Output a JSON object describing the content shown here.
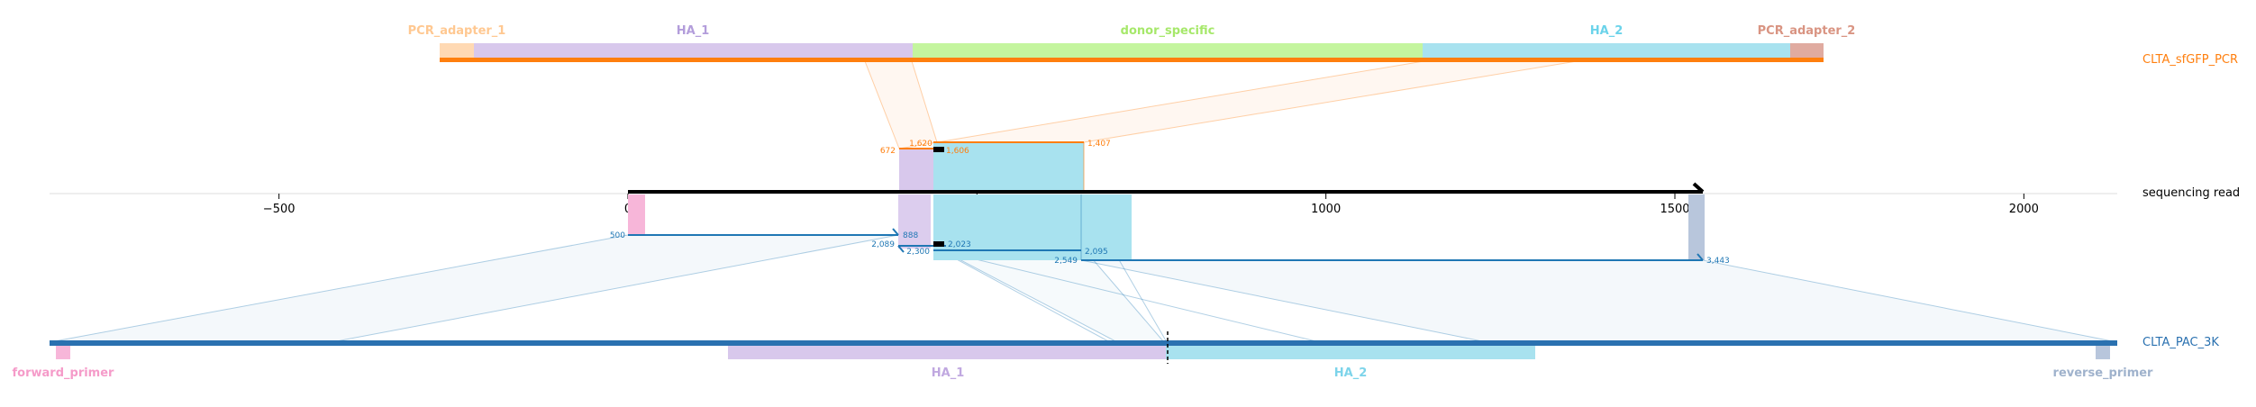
{
  "tracks": {
    "pcr": {
      "name": "CLTA_sfGFP_PCR",
      "color": "#ff7f0e",
      "features": [
        {
          "id": "pcr-adapter-1",
          "label": "PCR_adapter_1",
          "color": "#ffd9b3",
          "label_color": "#ffc891"
        },
        {
          "id": "ha-1",
          "label": "HA_1",
          "color": "#d8c8ec",
          "label_color": "#b39ddb"
        },
        {
          "id": "donor-specific",
          "label": "donor_specific",
          "color": "#c4f59e",
          "label_color": "#a6e86a"
        },
        {
          "id": "ha-2",
          "label": "HA_2",
          "color": "#a8e2ef",
          "label_color": "#6bd3ea"
        },
        {
          "id": "pcr-adapter-2",
          "label": "PCR_adapter_2",
          "color": "#e0aba0",
          "label_color": "#d99482"
        }
      ]
    },
    "read": {
      "name": "sequencing read",
      "color": "#000000"
    },
    "pac": {
      "name": "CLTA_PAC_3K",
      "color": "#2a71b0",
      "features": [
        {
          "id": "forward-primer",
          "label": "forward_primer",
          "color": "#f7b6d9",
          "label_color": "#f59bc9"
        },
        {
          "id": "pac-ha-1",
          "label": "HA_1",
          "color": "#d8c8ec",
          "label_color": "#c0a8e0"
        },
        {
          "id": "pac-ha-2",
          "label": "HA_2",
          "color": "#a8e2ef",
          "label_color": "#7dd4ea"
        },
        {
          "id": "reverse-primer",
          "label": "reverse_primer",
          "color": "#b8c6dc",
          "label_color": "#9fb2cc"
        }
      ]
    }
  },
  "axis": {
    "ticks": [
      -500,
      0,
      500,
      1000,
      1500,
      2000
    ],
    "tick_labels": [
      "−500",
      "0",
      "500",
      "1000",
      "1500",
      "2000"
    ],
    "xlim": [
      -830,
      2130
    ]
  },
  "pcr_alignments": [
    {
      "read_start": 387,
      "read_end": 437,
      "ref_start_label": "672",
      "ref_end_label": "1,620",
      "ref_end2_label": "1,606"
    },
    {
      "read_start": 437,
      "read_end": 650,
      "ref_start_label": "1,620",
      "ref_end_label": "1,407"
    }
  ],
  "pac_alignments": [
    {
      "read_start": 0,
      "read_end": 387,
      "read_start_label": "500",
      "read_end_label": "888",
      "ref_start_label": "2,089"
    },
    {
      "read_start": 437,
      "read_end": 640,
      "read_start_label": "2,023",
      "read_end_label": "2,300"
    },
    {
      "read_start": 650,
      "read_end": 1540,
      "read_start_label": "2,549",
      "read_mid_label": "2,095",
      "read_end_label": "3,443"
    }
  ],
  "colors": {
    "pcr_alignment": "#ff7f0e",
    "pac_alignment": "#1f77b4",
    "axis": "#000000"
  }
}
